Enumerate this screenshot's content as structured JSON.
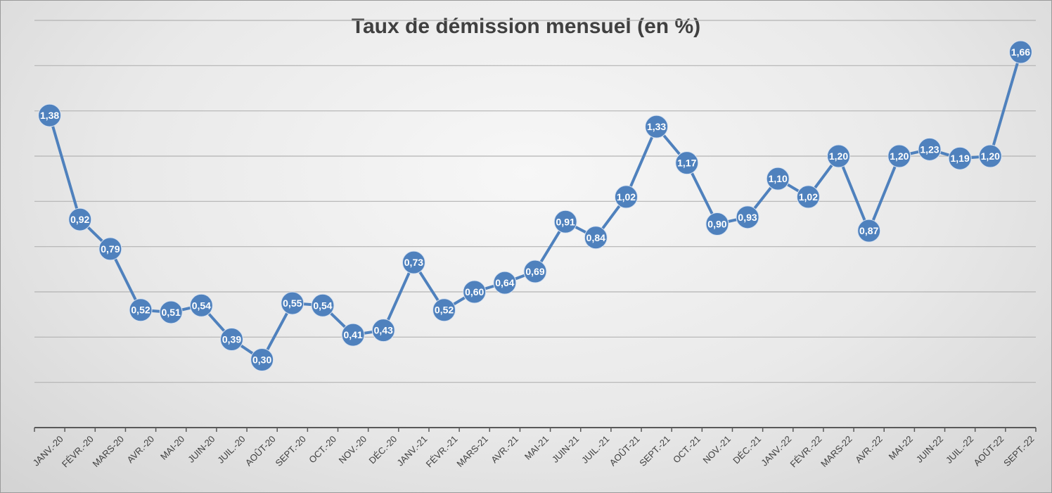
{
  "chart_data": {
    "type": "line",
    "title": "Taux de démission mensuel (en %)",
    "xlabel": "",
    "ylabel": "",
    "categories": [
      "JANV.-20",
      "FÉVR.-20",
      "MARS-20",
      "AVR.-20",
      "MAI-20",
      "JUIN-20",
      "JUIL.-20",
      "AOÛT-20",
      "SEPT.-20",
      "OCT.-20",
      "NOV.-20",
      "DÉC.-20",
      "JANV.-21",
      "FÉVR.-21",
      "MARS-21",
      "AVR.-21",
      "MAI-21",
      "JUIN-21",
      "JUIL.-21",
      "AOÛT-21",
      "SEPT.-21",
      "OCT.-21",
      "NOV.-21",
      "DÉC.-21",
      "JANV.-22",
      "FÉVR.-22",
      "MARS-22",
      "AVR.-22",
      "MAI-22",
      "JUIN-22",
      "JUIL.-22",
      "AOÛT-22",
      "SEPT.-22"
    ],
    "series": [
      {
        "values": [
          1.38,
          0.92,
          0.79,
          0.52,
          0.51,
          0.54,
          0.39,
          0.3,
          0.55,
          0.54,
          0.41,
          0.43,
          0.73,
          0.52,
          0.6,
          0.64,
          0.69,
          0.91,
          0.84,
          1.02,
          1.33,
          1.17,
          0.9,
          0.93,
          1.1,
          1.02,
          1.2,
          0.87,
          1.2,
          1.23,
          1.19,
          1.2,
          1.66
        ],
        "labels": [
          "1,38",
          "0,92",
          "0,79",
          "0,52",
          "0,51",
          "0,54",
          "0,39",
          "0,30",
          "0,55",
          "0,54",
          "0,41",
          "0,43",
          "0,73",
          "0,52",
          "0,60",
          "0,64",
          "0,69",
          "0,91",
          "0,84",
          "1,02",
          "1,33",
          "1,17",
          "0,90",
          "0,93",
          "1,10",
          "1,02",
          "1,20",
          "0,87",
          "1,20",
          "1,23",
          "1,19",
          "1,20",
          "1,66"
        ]
      }
    ],
    "ylim": [
      0,
      1.8
    ],
    "y_gridline_step": 0.2,
    "y_tick_labels_visible": false,
    "grid": true,
    "legend": "none",
    "colors": {
      "line": "#4f81bd",
      "marker": "#4f81bd",
      "data_label": "#ffffff",
      "gridline": "#b3b3b3",
      "axis": "#595959"
    }
  }
}
